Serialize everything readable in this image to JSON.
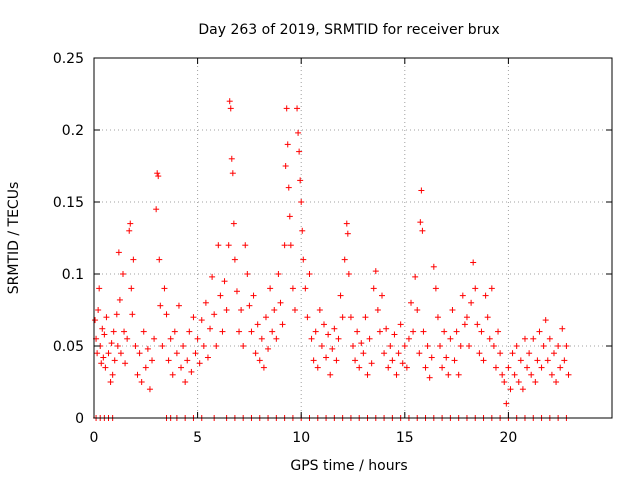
{
  "chart_data": {
    "type": "scatter",
    "title": "Day 263 of 2019, SRMTID for receiver brux",
    "xlabel": "GPS time / hours",
    "ylabel": "SRMTID / TECUs",
    "xlim": [
      0,
      25
    ],
    "ylim": [
      0,
      0.25
    ],
    "grid": true,
    "x_ticks": [
      0,
      5,
      10,
      15,
      20
    ],
    "x_tick_labels": [
      "0",
      "5",
      "10",
      "15",
      "20"
    ],
    "y_ticks": [
      0,
      0.05,
      0.1,
      0.15,
      0.2,
      0.25
    ],
    "y_tick_labels": [
      "0",
      "0.05",
      "0.1",
      "0.15",
      "0.2",
      "0.25"
    ],
    "color": "#ff0000",
    "marker": "plus",
    "series": [
      {
        "name": "SRMTID",
        "note": "dense scatter; representative points read from the figure",
        "points": [
          [
            0.05,
            0.068
          ],
          [
            0.1,
            0.055
          ],
          [
            0.15,
            0.045
          ],
          [
            0.2,
            0.075
          ],
          [
            0.25,
            0.09
          ],
          [
            0.3,
            0.05
          ],
          [
            0.35,
            0.038
          ],
          [
            0.4,
            0.062
          ],
          [
            0.45,
            0.042
          ],
          [
            0.5,
            0.058
          ],
          [
            0.55,
            0.035
          ],
          [
            0.6,
            0.07
          ],
          [
            0.7,
            0.045
          ],
          [
            0.8,
            0.025
          ],
          [
            0.85,
            0.052
          ],
          [
            0.9,
            0.03
          ],
          [
            0.95,
            0.06
          ],
          [
            1.0,
            0.04
          ],
          [
            1.1,
            0.072
          ],
          [
            1.15,
            0.05
          ],
          [
            1.2,
            0.115
          ],
          [
            1.25,
            0.082
          ],
          [
            1.3,
            0.045
          ],
          [
            1.4,
            0.1
          ],
          [
            1.45,
            0.06
          ],
          [
            1.5,
            0.038
          ],
          [
            1.6,
            0.055
          ],
          [
            1.7,
            0.13
          ],
          [
            1.75,
            0.135
          ],
          [
            1.8,
            0.09
          ],
          [
            1.85,
            0.072
          ],
          [
            1.9,
            0.11
          ],
          [
            2.0,
            0.05
          ],
          [
            2.1,
            0.03
          ],
          [
            2.2,
            0.045
          ],
          [
            2.3,
            0.025
          ],
          [
            2.4,
            0.06
          ],
          [
            2.5,
            0.035
          ],
          [
            2.6,
            0.048
          ],
          [
            2.7,
            0.02
          ],
          [
            2.8,
            0.04
          ],
          [
            2.9,
            0.055
          ],
          [
            3.0,
            0.145
          ],
          [
            3.05,
            0.17
          ],
          [
            3.1,
            0.168
          ],
          [
            3.15,
            0.11
          ],
          [
            3.2,
            0.078
          ],
          [
            3.3,
            0.05
          ],
          [
            3.4,
            0.09
          ],
          [
            3.5,
            0.072
          ],
          [
            3.6,
            0.04
          ],
          [
            3.7,
            0.055
          ],
          [
            3.8,
            0.03
          ],
          [
            3.9,
            0.06
          ],
          [
            4.0,
            0.045
          ],
          [
            4.1,
            0.078
          ],
          [
            4.2,
            0.035
          ],
          [
            4.3,
            0.05
          ],
          [
            4.4,
            0.025
          ],
          [
            4.5,
            0.04
          ],
          [
            4.6,
            0.06
          ],
          [
            4.7,
            0.032
          ],
          [
            4.8,
            0.07
          ],
          [
            4.9,
            0.045
          ],
          [
            5.0,
            0.055
          ],
          [
            5.1,
            0.038
          ],
          [
            5.2,
            0.068
          ],
          [
            5.3,
            0.05
          ],
          [
            5.4,
            0.08
          ],
          [
            5.5,
            0.042
          ],
          [
            5.6,
            0.062
          ],
          [
            5.7,
            0.098
          ],
          [
            5.8,
            0.072
          ],
          [
            5.9,
            0.05
          ],
          [
            6.0,
            0.12
          ],
          [
            6.1,
            0.085
          ],
          [
            6.2,
            0.06
          ],
          [
            6.3,
            0.095
          ],
          [
            6.4,
            0.075
          ],
          [
            6.5,
            0.12
          ],
          [
            6.55,
            0.22
          ],
          [
            6.6,
            0.215
          ],
          [
            6.65,
            0.18
          ],
          [
            6.7,
            0.17
          ],
          [
            6.75,
            0.135
          ],
          [
            6.8,
            0.11
          ],
          [
            6.9,
            0.088
          ],
          [
            7.0,
            0.06
          ],
          [
            7.1,
            0.075
          ],
          [
            7.2,
            0.05
          ],
          [
            7.3,
            0.12
          ],
          [
            7.4,
            0.1
          ],
          [
            7.5,
            0.078
          ],
          [
            7.6,
            0.06
          ],
          [
            7.7,
            0.085
          ],
          [
            7.8,
            0.045
          ],
          [
            7.9,
            0.065
          ],
          [
            8.0,
            0.04
          ],
          [
            8.1,
            0.055
          ],
          [
            8.2,
            0.035
          ],
          [
            8.3,
            0.07
          ],
          [
            8.4,
            0.048
          ],
          [
            8.5,
            0.09
          ],
          [
            8.6,
            0.06
          ],
          [
            8.7,
            0.075
          ],
          [
            8.8,
            0.055
          ],
          [
            8.9,
            0.1
          ],
          [
            9.0,
            0.08
          ],
          [
            9.1,
            0.065
          ],
          [
            9.2,
            0.12
          ],
          [
            9.25,
            0.175
          ],
          [
            9.3,
            0.215
          ],
          [
            9.35,
            0.19
          ],
          [
            9.4,
            0.16
          ],
          [
            9.45,
            0.14
          ],
          [
            9.5,
            0.12
          ],
          [
            9.6,
            0.09
          ],
          [
            9.7,
            0.075
          ],
          [
            9.8,
            0.215
          ],
          [
            9.85,
            0.198
          ],
          [
            9.9,
            0.185
          ],
          [
            9.95,
            0.165
          ],
          [
            10.0,
            0.15
          ],
          [
            10.05,
            0.13
          ],
          [
            10.1,
            0.11
          ],
          [
            10.2,
            0.09
          ],
          [
            10.3,
            0.07
          ],
          [
            10.4,
            0.1
          ],
          [
            10.5,
            0.055
          ],
          [
            10.6,
            0.04
          ],
          [
            10.7,
            0.06
          ],
          [
            10.8,
            0.035
          ],
          [
            10.9,
            0.075
          ],
          [
            11.0,
            0.05
          ],
          [
            11.1,
            0.065
          ],
          [
            11.2,
            0.042
          ],
          [
            11.3,
            0.058
          ],
          [
            11.4,
            0.03
          ],
          [
            11.5,
            0.048
          ],
          [
            11.6,
            0.062
          ],
          [
            11.7,
            0.04
          ],
          [
            11.8,
            0.055
          ],
          [
            11.9,
            0.085
          ],
          [
            12.0,
            0.07
          ],
          [
            12.1,
            0.11
          ],
          [
            12.2,
            0.135
          ],
          [
            12.25,
            0.128
          ],
          [
            12.3,
            0.1
          ],
          [
            12.4,
            0.07
          ],
          [
            12.5,
            0.05
          ],
          [
            12.6,
            0.04
          ],
          [
            12.7,
            0.06
          ],
          [
            12.8,
            0.035
          ],
          [
            12.9,
            0.052
          ],
          [
            13.0,
            0.045
          ],
          [
            13.1,
            0.07
          ],
          [
            13.2,
            0.03
          ],
          [
            13.3,
            0.055
          ],
          [
            13.4,
            0.038
          ],
          [
            13.5,
            0.09
          ],
          [
            13.6,
            0.102
          ],
          [
            13.7,
            0.075
          ],
          [
            13.8,
            0.06
          ],
          [
            13.9,
            0.085
          ],
          [
            14.0,
            0.045
          ],
          [
            14.1,
            0.062
          ],
          [
            14.2,
            0.035
          ],
          [
            14.3,
            0.05
          ],
          [
            14.4,
            0.04
          ],
          [
            14.5,
            0.058
          ],
          [
            14.6,
            0.03
          ],
          [
            14.7,
            0.045
          ],
          [
            14.8,
            0.065
          ],
          [
            14.9,
            0.038
          ],
          [
            15.0,
            0.05
          ],
          [
            15.1,
            0.035
          ],
          [
            15.2,
            0.055
          ],
          [
            15.3,
            0.08
          ],
          [
            15.4,
            0.06
          ],
          [
            15.5,
            0.098
          ],
          [
            15.6,
            0.075
          ],
          [
            15.7,
            0.045
          ],
          [
            15.75,
            0.136
          ],
          [
            15.8,
            0.158
          ],
          [
            15.85,
            0.13
          ],
          [
            15.9,
            0.06
          ],
          [
            16.0,
            0.035
          ],
          [
            16.1,
            0.05
          ],
          [
            16.2,
            0.028
          ],
          [
            16.3,
            0.042
          ],
          [
            16.4,
            0.105
          ],
          [
            16.5,
            0.09
          ],
          [
            16.6,
            0.07
          ],
          [
            16.7,
            0.05
          ],
          [
            16.8,
            0.035
          ],
          [
            16.9,
            0.06
          ],
          [
            17.0,
            0.042
          ],
          [
            17.1,
            0.03
          ],
          [
            17.2,
            0.055
          ],
          [
            17.3,
            0.075
          ],
          [
            17.4,
            0.04
          ],
          [
            17.5,
            0.06
          ],
          [
            17.6,
            0.03
          ],
          [
            17.7,
            0.05
          ],
          [
            17.8,
            0.085
          ],
          [
            17.9,
            0.065
          ],
          [
            18.0,
            0.07
          ],
          [
            18.1,
            0.05
          ],
          [
            18.2,
            0.08
          ],
          [
            18.3,
            0.108
          ],
          [
            18.4,
            0.09
          ],
          [
            18.5,
            0.065
          ],
          [
            18.6,
            0.045
          ],
          [
            18.7,
            0.06
          ],
          [
            18.8,
            0.04
          ],
          [
            18.9,
            0.085
          ],
          [
            19.0,
            0.07
          ],
          [
            19.1,
            0.055
          ],
          [
            19.2,
            0.09
          ],
          [
            19.3,
            0.05
          ],
          [
            19.4,
            0.035
          ],
          [
            19.5,
            0.06
          ],
          [
            19.6,
            0.045
          ],
          [
            19.7,
            0.03
          ],
          [
            19.8,
            0.025
          ],
          [
            19.9,
            0.01
          ],
          [
            20.0,
            0.035
          ],
          [
            20.1,
            0.02
          ],
          [
            20.2,
            0.045
          ],
          [
            20.3,
            0.03
          ],
          [
            20.4,
            0.05
          ],
          [
            20.5,
            0.025
          ],
          [
            20.6,
            0.04
          ],
          [
            20.7,
            0.02
          ],
          [
            20.8,
            0.055
          ],
          [
            20.9,
            0.035
          ],
          [
            21.0,
            0.045
          ],
          [
            21.1,
            0.03
          ],
          [
            21.2,
            0.055
          ],
          [
            21.3,
            0.025
          ],
          [
            21.4,
            0.04
          ],
          [
            21.5,
            0.06
          ],
          [
            21.6,
            0.035
          ],
          [
            21.7,
            0.05
          ],
          [
            21.8,
            0.068
          ],
          [
            21.9,
            0.04
          ],
          [
            22.0,
            0.055
          ],
          [
            22.1,
            0.03
          ],
          [
            22.2,
            0.045
          ],
          [
            22.3,
            0.025
          ],
          [
            22.4,
            0.05
          ],
          [
            22.5,
            0.035
          ],
          [
            22.6,
            0.062
          ],
          [
            22.7,
            0.04
          ],
          [
            22.8,
            0.05
          ],
          [
            22.9,
            0.03
          ]
        ],
        "zero_points_x": [
          0.1,
          0.3,
          0.5,
          0.7,
          0.9,
          3.5,
          3.7,
          4.0,
          4.4,
          4.8,
          5.2,
          5.8,
          6.4,
          6.8,
          7.2,
          7.6,
          8.0,
          8.4,
          8.8,
          9.2,
          9.6,
          10.0,
          10.4,
          10.8,
          11.2,
          11.6,
          12.0,
          12.4,
          12.8,
          13.2,
          13.6,
          14.0,
          14.4,
          14.8,
          15.2,
          15.6,
          16.0,
          16.4,
          16.8,
          17.2,
          17.6,
          18.0,
          18.4,
          18.8,
          19.2,
          19.6,
          20.0,
          20.4,
          20.8,
          21.2,
          21.6,
          22.0,
          22.4,
          22.8
        ]
      }
    ]
  }
}
